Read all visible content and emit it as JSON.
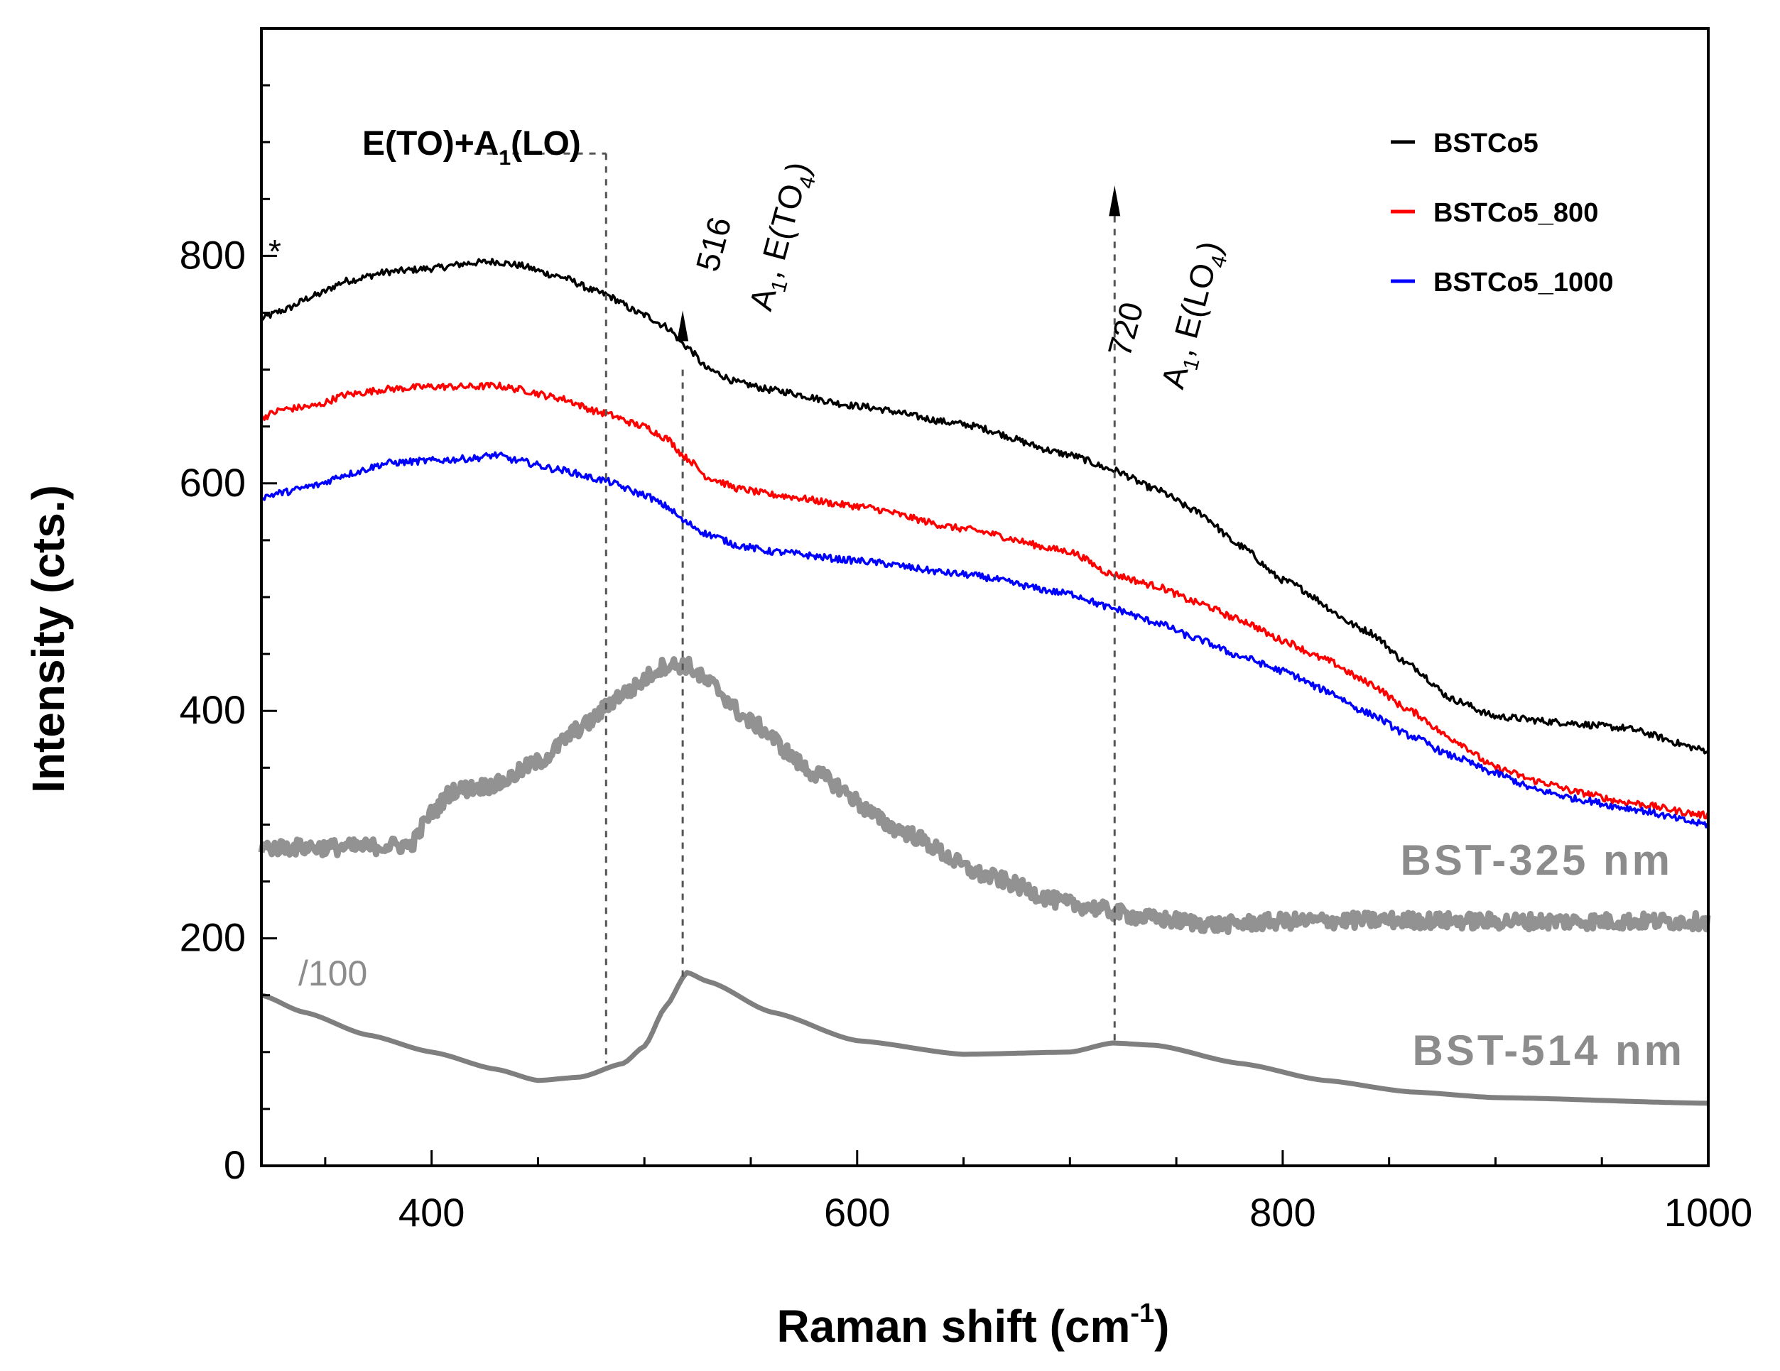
{
  "chart_data": {
    "type": "line",
    "title": "",
    "xlabel": "Raman shift (cm",
    "xlabel_sup": "-1",
    "xlabel_close": ")",
    "ylabel": "Intensity (cts.)",
    "xlim": [
      320,
      1000
    ],
    "ylim": [
      0,
      1000
    ],
    "xticks": [
      400,
      600,
      800,
      1000
    ],
    "yticks": [
      0,
      200,
      400,
      600,
      800
    ],
    "legend_position": "top-right",
    "series": [
      {
        "name": "BSTCo5",
        "color": "#000000",
        "noise": 3,
        "in_legend": true,
        "points": [
          [
            320,
            745
          ],
          [
            330,
            752
          ],
          [
            345,
            765
          ],
          [
            360,
            778
          ],
          [
            380,
            786
          ],
          [
            400,
            789
          ],
          [
            420,
            794
          ],
          [
            430,
            795
          ],
          [
            440,
            792
          ],
          [
            460,
            782
          ],
          [
            480,
            767
          ],
          [
            500,
            748
          ],
          [
            510,
            738
          ],
          [
            520,
            720
          ],
          [
            530,
            700
          ],
          [
            545,
            688
          ],
          [
            560,
            682
          ],
          [
            600,
            668
          ],
          [
            650,
            652
          ],
          [
            700,
            625
          ],
          [
            720,
            612
          ],
          [
            740,
            595
          ],
          [
            760,
            575
          ],
          [
            780,
            545
          ],
          [
            800,
            515
          ],
          [
            840,
            470
          ],
          [
            860,
            440
          ],
          [
            880,
            410
          ],
          [
            900,
            395
          ],
          [
            930,
            390
          ],
          [
            960,
            385
          ],
          [
            1000,
            365
          ]
        ]
      },
      {
        "name": "BSTCo5_800",
        "color": "#ff0000",
        "noise": 3,
        "in_legend": true,
        "points": [
          [
            320,
            658
          ],
          [
            330,
            665
          ],
          [
            345,
            668
          ],
          [
            360,
            678
          ],
          [
            380,
            683
          ],
          [
            400,
            685
          ],
          [
            420,
            685
          ],
          [
            430,
            686
          ],
          [
            440,
            683
          ],
          [
            460,
            675
          ],
          [
            480,
            662
          ],
          [
            500,
            650
          ],
          [
            510,
            640
          ],
          [
            520,
            622
          ],
          [
            530,
            605
          ],
          [
            545,
            595
          ],
          [
            560,
            590
          ],
          [
            600,
            580
          ],
          [
            650,
            560
          ],
          [
            700,
            540
          ],
          [
            720,
            520
          ],
          [
            740,
            510
          ],
          [
            760,
            495
          ],
          [
            780,
            480
          ],
          [
            800,
            462
          ],
          [
            820,
            445
          ],
          [
            840,
            425
          ],
          [
            860,
            400
          ],
          [
            880,
            375
          ],
          [
            900,
            350
          ],
          [
            920,
            338
          ],
          [
            940,
            328
          ],
          [
            960,
            320
          ],
          [
            1000,
            308
          ]
        ]
      },
      {
        "name": "BSTCo5_1000",
        "color": "#0000ff",
        "noise": 3,
        "in_legend": true,
        "points": [
          [
            320,
            588
          ],
          [
            330,
            592
          ],
          [
            345,
            598
          ],
          [
            360,
            608
          ],
          [
            380,
            618
          ],
          [
            400,
            620
          ],
          [
            420,
            622
          ],
          [
            430,
            625
          ],
          [
            440,
            620
          ],
          [
            460,
            612
          ],
          [
            480,
            603
          ],
          [
            500,
            590
          ],
          [
            510,
            580
          ],
          [
            520,
            565
          ],
          [
            530,
            555
          ],
          [
            545,
            545
          ],
          [
            560,
            540
          ],
          [
            600,
            532
          ],
          [
            650,
            520
          ],
          [
            700,
            503
          ],
          [
            720,
            490
          ],
          [
            740,
            478
          ],
          [
            760,
            463
          ],
          [
            780,
            448
          ],
          [
            800,
            435
          ],
          [
            820,
            418
          ],
          [
            840,
            398
          ],
          [
            860,
            378
          ],
          [
            880,
            360
          ],
          [
            900,
            345
          ],
          [
            920,
            330
          ],
          [
            940,
            322
          ],
          [
            960,
            315
          ],
          [
            1000,
            300
          ]
        ]
      },
      {
        "name": "BST-325 nm",
        "color": "#7f7f7f",
        "noise": 7,
        "width": 9,
        "in_legend": false,
        "points": [
          [
            320,
            280
          ],
          [
            360,
            280
          ],
          [
            390,
            282
          ],
          [
            400,
            310
          ],
          [
            410,
            330
          ],
          [
            430,
            335
          ],
          [
            450,
            355
          ],
          [
            470,
            385
          ],
          [
            490,
            415
          ],
          [
            510,
            440
          ],
          [
            520,
            440
          ],
          [
            530,
            425
          ],
          [
            550,
            390
          ],
          [
            580,
            345
          ],
          [
            620,
            295
          ],
          [
            660,
            255
          ],
          [
            700,
            230
          ],
          [
            740,
            217
          ],
          [
            770,
            212
          ],
          [
            800,
            215
          ],
          [
            850,
            216
          ],
          [
            900,
            215
          ],
          [
            1000,
            215
          ]
        ]
      },
      {
        "name": "BST-514 nm",
        "color": "#7f7f7f",
        "noise": 0,
        "width": 7,
        "in_legend": false,
        "points": [
          [
            320,
            150
          ],
          [
            340,
            135
          ],
          [
            370,
            115
          ],
          [
            400,
            100
          ],
          [
            430,
            85
          ],
          [
            450,
            75
          ],
          [
            470,
            78
          ],
          [
            490,
            90
          ],
          [
            500,
            105
          ],
          [
            510,
            140
          ],
          [
            520,
            170
          ],
          [
            530,
            162
          ],
          [
            560,
            135
          ],
          [
            600,
            110
          ],
          [
            650,
            98
          ],
          [
            700,
            100
          ],
          [
            720,
            108
          ],
          [
            740,
            106
          ],
          [
            780,
            90
          ],
          [
            820,
            75
          ],
          [
            860,
            65
          ],
          [
            900,
            60
          ],
          [
            1000,
            55
          ]
        ]
      }
    ],
    "annotations": {
      "bracket_label_main": "E(TO)+A",
      "bracket_label_sub": "1",
      "bracket_label_end": "(LO)",
      "peak516_value": "516",
      "peak516_mode_a": "A",
      "peak516_mode_a_sub": "1",
      "peak516_mode_b": ", E(TO",
      "peak516_mode_b_sub": "4",
      "peak516_mode_end": ")",
      "peak720_value": "720",
      "peak720_mode_a": "A",
      "peak720_mode_a_sub": "1",
      "peak720_mode_b": ", E(LO",
      "peak720_mode_b_sub": "4",
      "peak720_mode_end": ")",
      "star": "*",
      "scale_note": "/100",
      "bst325_label": "BST-325 nm",
      "bst514_label": "BST-514 nm"
    }
  }
}
